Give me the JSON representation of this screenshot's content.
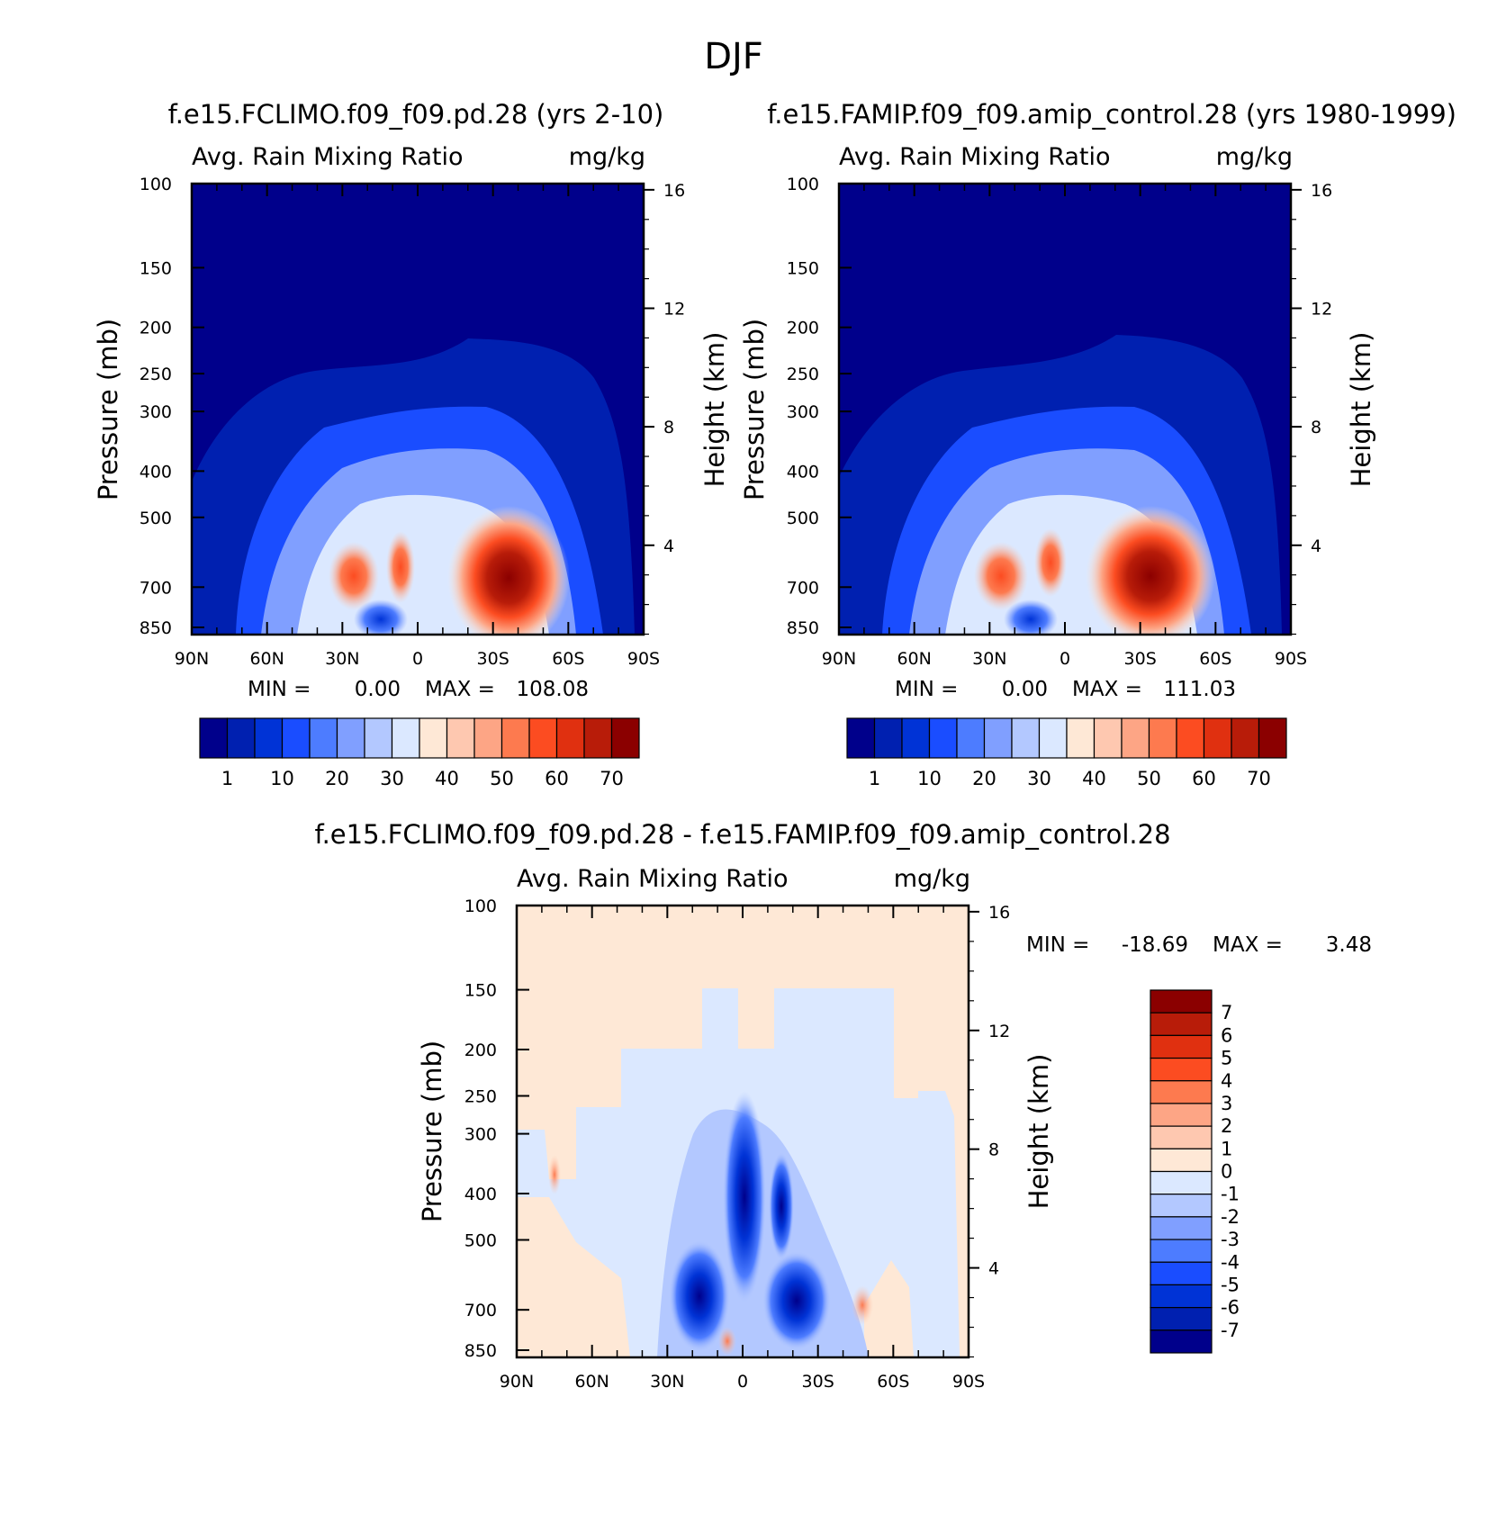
{
  "figure": {
    "season": "DJF"
  },
  "colors": {
    "abs_scale": [
      "#00008b",
      "#0020b0",
      "#0033d6",
      "#1a4dff",
      "#4d7cff",
      "#809fff",
      "#b3c8ff",
      "#dbe8ff",
      "#fee8d6",
      "#fec8b0",
      "#fda585",
      "#fd7a4f",
      "#fc4c21",
      "#e03010",
      "#b81c09",
      "#8b0000"
    ],
    "diff_scale": [
      "#00008b",
      "#0020b0",
      "#0033d6",
      "#1a4dff",
      "#4d7cff",
      "#809fff",
      "#b3c8ff",
      "#dbe8ff",
      "#fee8d6",
      "#fec8b0",
      "#fda585",
      "#fd7a4f",
      "#fc4c21",
      "#e03010",
      "#b81c09",
      "#8b0000"
    ]
  },
  "chart_data": [
    {
      "type": "heatmap",
      "title": "f.e15.FCLIMO.f09_f09.pd.28 (yrs 2-10)",
      "variable": "Avg. Rain Mixing Ratio",
      "units": "mg/kg",
      "ylabel": "Pressure (mb)",
      "y2label": "Height (km)",
      "x_ticks": [
        "90N",
        "60N",
        "30N",
        "0",
        "30S",
        "60S",
        "90S"
      ],
      "y_ticks": [
        100,
        150,
        200,
        250,
        300,
        400,
        500,
        700,
        850
      ],
      "y2_ticks": [
        16,
        12,
        8,
        4
      ],
      "yscale": "log",
      "min_label": "MIN =",
      "min_value": "0.00",
      "max_label": "MAX =",
      "max_value": "108.08",
      "colorbar_labels": [
        "1",
        "10",
        "20",
        "30",
        "40",
        "50",
        "60",
        "70"
      ],
      "peak": {
        "lat": -35,
        "p": 700
      },
      "cloud_top_p": 300
    },
    {
      "type": "heatmap",
      "title": "f.e15.FAMIP.f09_f09.amip_control.28 (yrs 1980-1999)",
      "variable": "Avg. Rain Mixing Ratio",
      "units": "mg/kg",
      "ylabel": "Pressure (mb)",
      "y2label": "Height (km)",
      "x_ticks": [
        "90N",
        "60N",
        "30N",
        "0",
        "30S",
        "60S",
        "90S"
      ],
      "y_ticks": [
        100,
        150,
        200,
        250,
        300,
        400,
        500,
        700,
        850
      ],
      "y2_ticks": [
        16,
        12,
        8,
        4
      ],
      "yscale": "log",
      "min_label": "MIN =",
      "min_value": "0.00",
      "max_label": "MAX =",
      "max_value": "111.03",
      "colorbar_labels": [
        "1",
        "10",
        "20",
        "30",
        "40",
        "50",
        "60",
        "70"
      ],
      "peak": {
        "lat": -30,
        "p": 700
      },
      "cloud_top_p": 300
    },
    {
      "type": "heatmap",
      "title": "f.e15.FCLIMO.f09_f09.pd.28 - f.e15.FAMIP.f09_f09.amip_control.28",
      "variable": "Avg. Rain Mixing Ratio",
      "units": "mg/kg",
      "ylabel": "Pressure (mb)",
      "y2label": "Height (km)",
      "x_ticks": [
        "90N",
        "60N",
        "30N",
        "0",
        "30S",
        "60S",
        "90S"
      ],
      "y_ticks": [
        100,
        150,
        200,
        250,
        300,
        400,
        500,
        700,
        850
      ],
      "y2_ticks": [
        16,
        12,
        8,
        4
      ],
      "yscale": "log",
      "min_label": "MIN =",
      "min_value": "-18.69",
      "max_label": "MAX =",
      "max_value": "3.48",
      "colorbar_labels": [
        "7",
        "6",
        "5",
        "4",
        "3",
        "2",
        "1",
        "0",
        "-1",
        "-2",
        "-3",
        "-4",
        "-5",
        "-6",
        "-7"
      ],
      "peak": {
        "lat": 0,
        "p": 400
      }
    }
  ]
}
